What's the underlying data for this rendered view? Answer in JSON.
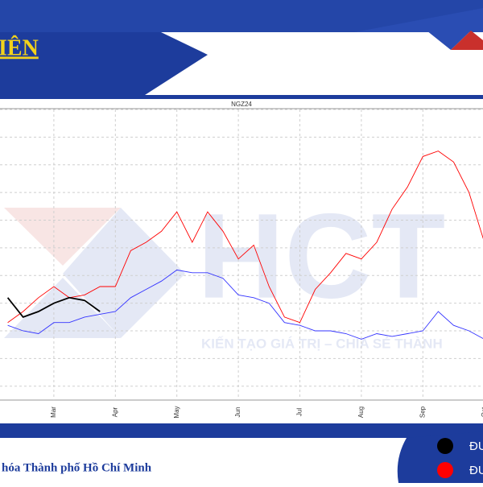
{
  "header": {
    "title": "IÊN"
  },
  "footer": {
    "text": "hóa Thành phố Hồ Chí Minh"
  },
  "watermark": {
    "logo": "HCT",
    "slogan": "KIẾN TẠO GIÁ TRỊ – CHIA SẺ THÀNH"
  },
  "chart_data": {
    "type": "line",
    "title": "NGZ24",
    "categories": [
      null,
      null,
      null,
      "Mar",
      null,
      null,
      null,
      "Apr",
      null,
      null,
      null,
      "May",
      null,
      null,
      null,
      "Jun",
      null,
      null,
      null,
      "Jul",
      null,
      null,
      null,
      "Aug",
      null,
      null,
      null,
      "Sep",
      null,
      null,
      null,
      "Oct"
    ],
    "series": [
      {
        "name": "ĐU",
        "color": "#000000",
        "values": [
          3.7,
          3.0,
          3.2,
          3.5,
          3.7,
          3.6,
          3.2,
          null,
          null,
          null,
          null,
          null,
          null,
          null,
          null,
          null,
          null,
          null,
          null,
          null,
          null,
          null,
          null,
          null,
          null,
          null,
          null,
          null,
          null,
          null,
          null,
          null
        ]
      },
      {
        "name": "ĐU",
        "color": "#ff0000",
        "values": [
          2.8,
          3.2,
          3.7,
          4.1,
          3.7,
          3.8,
          4.1,
          4.1,
          5.4,
          5.7,
          6.1,
          6.8,
          5.7,
          6.8,
          6.1,
          5.1,
          5.6,
          4.1,
          3.0,
          2.8,
          4.0,
          4.6,
          5.3,
          5.1,
          5.7,
          6.9,
          7.7,
          8.8,
          9.0,
          8.6,
          7.5,
          5.7
        ]
      },
      {
        "color": "#3333ff",
        "values": [
          2.7,
          2.5,
          2.4,
          2.8,
          2.8,
          3.0,
          3.1,
          3.2,
          3.7,
          4.0,
          4.3,
          4.7,
          4.6,
          4.6,
          4.4,
          3.8,
          3.7,
          3.5,
          2.8,
          2.7,
          2.5,
          2.5,
          2.4,
          2.2,
          2.4,
          2.3,
          2.4,
          2.5,
          3.2,
          2.7,
          2.5,
          2.2
        ]
      }
    ],
    "ylim": [
      0,
      10.5
    ],
    "yticks": [
      0.5,
      1.5,
      2.5,
      3.5,
      4.5,
      5.5,
      6.5,
      7.5,
      8.5,
      9.5,
      10.5
    ],
    "grid": true
  }
}
